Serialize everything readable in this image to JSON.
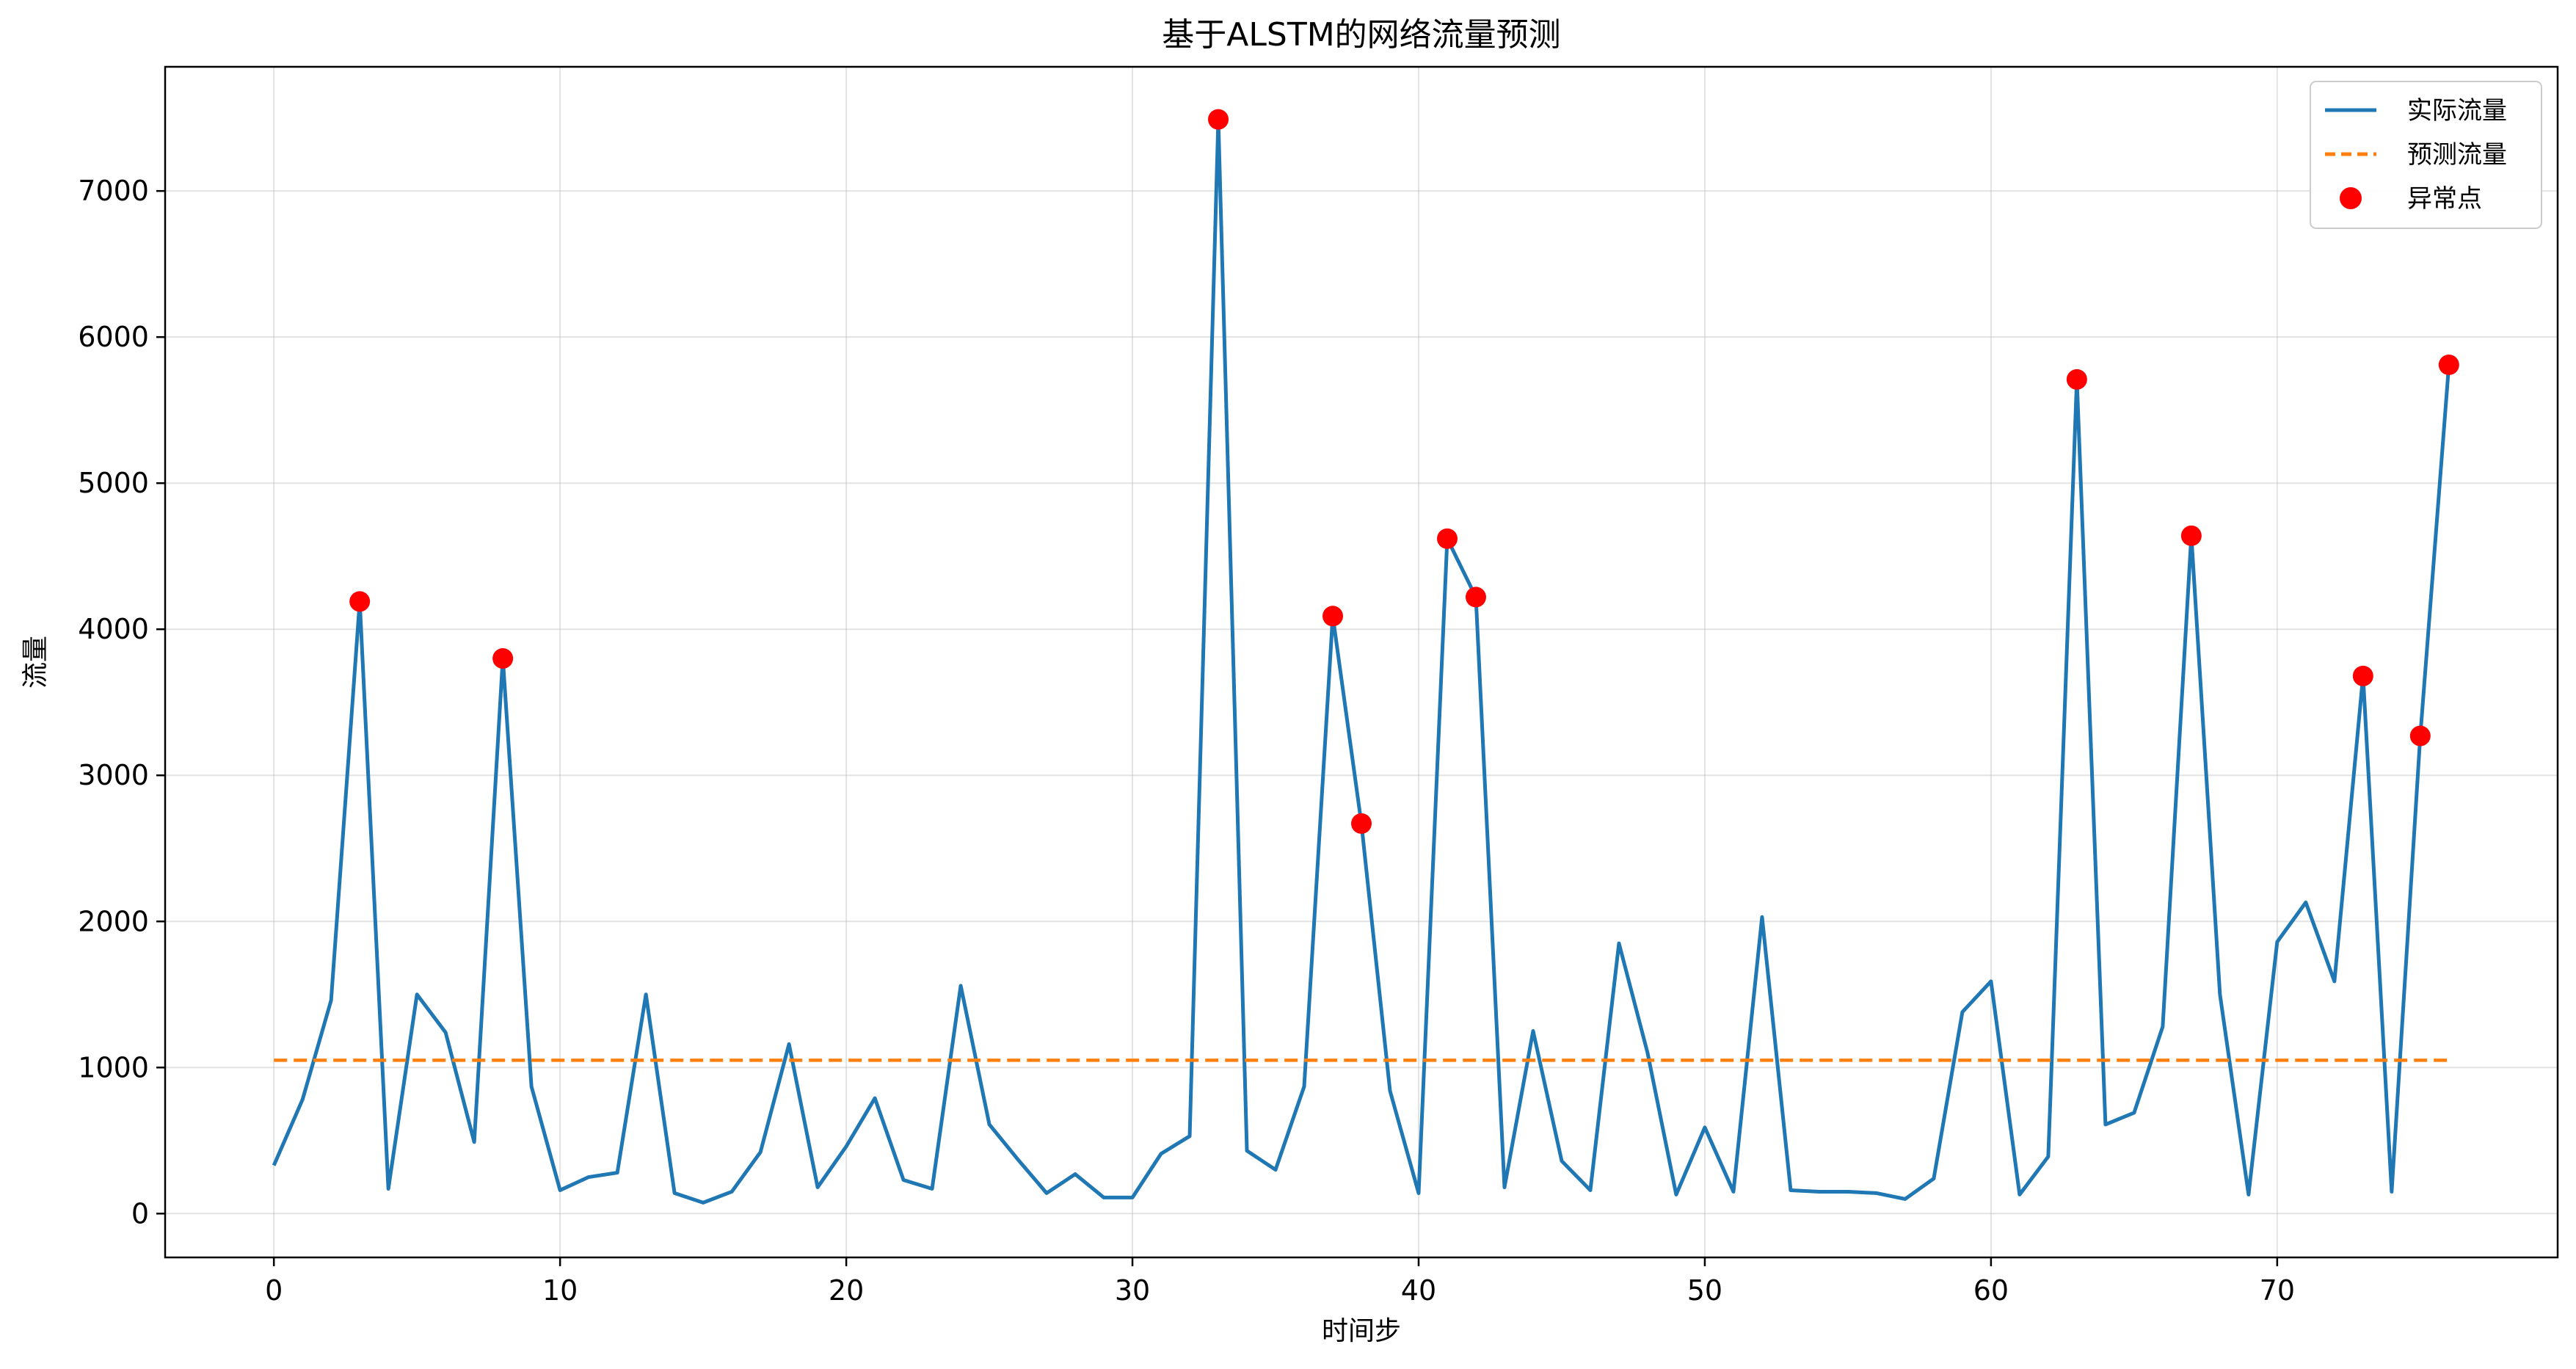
{
  "chart_data": {
    "type": "line",
    "title": "基于ALSTM的网络流量预测",
    "xlabel": "时间步",
    "ylabel": "流量",
    "xlim": [
      -3.8,
      79.8
    ],
    "ylim": [
      -300,
      7850
    ],
    "xticks": [
      0,
      10,
      20,
      30,
      40,
      50,
      60,
      70
    ],
    "yticks": [
      0,
      1000,
      2000,
      3000,
      4000,
      5000,
      6000,
      7000
    ],
    "grid": true,
    "legend_position": "top-right",
    "x": [
      0,
      1,
      2,
      3,
      4,
      5,
      6,
      7,
      8,
      9,
      10,
      11,
      12,
      13,
      14,
      15,
      16,
      17,
      18,
      19,
      20,
      21,
      22,
      23,
      24,
      25,
      26,
      27,
      28,
      29,
      30,
      31,
      32,
      33,
      34,
      35,
      36,
      37,
      38,
      39,
      40,
      41,
      42,
      43,
      44,
      45,
      46,
      47,
      48,
      49,
      50,
      51,
      52,
      53,
      54,
      55,
      56,
      57,
      58,
      59,
      60,
      61,
      62,
      63,
      64,
      65,
      66,
      67,
      68,
      69,
      70,
      71,
      72,
      73,
      74,
      75,
      76
    ],
    "series": [
      {
        "name": "实际流量",
        "kind": "line",
        "style": "solid",
        "color": "#1f77b4",
        "values": [
          330,
          780,
          1460,
          4190,
          170,
          1500,
          1240,
          490,
          3800,
          870,
          160,
          250,
          280,
          1500,
          140,
          75,
          150,
          420,
          1160,
          180,
          460,
          790,
          230,
          170,
          1560,
          610,
          370,
          140,
          270,
          110,
          110,
          410,
          530,
          7490,
          430,
          300,
          870,
          4090,
          2670,
          840,
          140,
          4620,
          4220,
          180,
          1250,
          360,
          160,
          1850,
          1100,
          130,
          590,
          150,
          2030,
          160,
          150,
          150,
          140,
          100,
          240,
          1380,
          1590,
          130,
          390,
          5710,
          610,
          690,
          1280,
          4640,
          1500,
          130,
          1860,
          2130,
          1590,
          3680,
          150,
          3270,
          5810
        ]
      },
      {
        "name": "预测流量",
        "kind": "line",
        "style": "dashed",
        "color": "#ff7f0e",
        "values": [
          1050,
          1050,
          1050,
          1050,
          1050,
          1050,
          1050,
          1050,
          1050,
          1050,
          1050,
          1050,
          1050,
          1050,
          1050,
          1050,
          1050,
          1050,
          1050,
          1050,
          1050,
          1050,
          1050,
          1050,
          1050,
          1050,
          1050,
          1050,
          1050,
          1050,
          1050,
          1050,
          1050,
          1050,
          1050,
          1050,
          1050,
          1050,
          1050,
          1050,
          1050,
          1050,
          1050,
          1050,
          1050,
          1050,
          1050,
          1050,
          1050,
          1050,
          1050,
          1050,
          1050,
          1050,
          1050,
          1050,
          1050,
          1050,
          1050,
          1050,
          1050,
          1050,
          1050,
          1050,
          1050,
          1050,
          1050,
          1050,
          1050,
          1050,
          1050,
          1050,
          1050,
          1050,
          1050,
          1050,
          1050
        ]
      },
      {
        "name": "异常点",
        "kind": "scatter",
        "color": "#ff0000",
        "points": [
          [
            3,
            4190
          ],
          [
            8,
            3800
          ],
          [
            33,
            7490
          ],
          [
            37,
            4090
          ],
          [
            38,
            2670
          ],
          [
            41,
            4620
          ],
          [
            42,
            4220
          ],
          [
            63,
            5710
          ],
          [
            67,
            4640
          ],
          [
            73,
            3680
          ],
          [
            75,
            3270
          ],
          [
            76,
            5810
          ]
        ]
      }
    ]
  }
}
